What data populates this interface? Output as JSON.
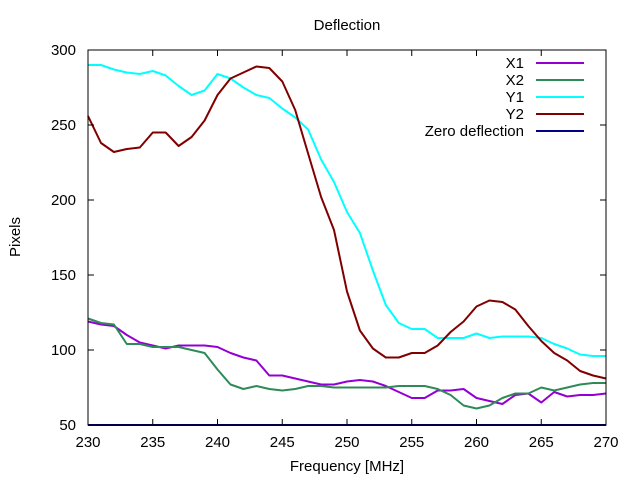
{
  "chart_data": {
    "type": "line",
    "title": "Deflection",
    "xlabel": "Frequency [MHz]",
    "ylabel": "Pixels",
    "xlim": [
      230,
      270
    ],
    "ylim": [
      50,
      300
    ],
    "x_ticks": [
      230,
      235,
      240,
      245,
      250,
      255,
      260,
      265,
      270
    ],
    "y_ticks": [
      50,
      100,
      150,
      200,
      250,
      300
    ],
    "grid": false,
    "legend_position": "top-right",
    "series": [
      {
        "name": "X1",
        "color": "#9400d3",
        "x": [
          230,
          231,
          232,
          233,
          234,
          235,
          236,
          237,
          238,
          239,
          240,
          241,
          242,
          243,
          244,
          245,
          246,
          247,
          248,
          249,
          250,
          251,
          252,
          253,
          254,
          255,
          256,
          257,
          258,
          259,
          260,
          261,
          262,
          263,
          264,
          265,
          266,
          267,
          268,
          269,
          270
        ],
        "y": [
          119,
          117,
          116,
          110,
          105,
          103,
          101,
          103,
          103,
          103,
          102,
          98,
          95,
          93,
          83,
          83,
          81,
          79,
          77,
          77,
          79,
          80,
          79,
          76,
          72,
          68,
          68,
          73,
          73,
          74,
          68,
          66,
          64,
          70,
          71,
          65,
          72,
          69,
          70,
          70,
          71
        ]
      },
      {
        "name": "X2",
        "color": "#2e8b57",
        "x": [
          230,
          231,
          232,
          233,
          234,
          235,
          236,
          237,
          238,
          239,
          240,
          241,
          242,
          243,
          244,
          245,
          246,
          247,
          248,
          249,
          250,
          251,
          252,
          253,
          254,
          255,
          256,
          257,
          258,
          259,
          260,
          261,
          262,
          263,
          264,
          265,
          266,
          267,
          268,
          269,
          270
        ],
        "y": [
          121,
          118,
          117,
          104,
          104,
          102,
          102,
          102,
          100,
          98,
          87,
          77,
          74,
          76,
          74,
          73,
          74,
          76,
          76,
          75,
          75,
          75,
          75,
          75,
          76,
          76,
          76,
          74,
          70,
          63,
          61,
          63,
          68,
          71,
          71,
          75,
          73,
          75,
          77,
          78,
          78
        ]
      },
      {
        "name": "Y1",
        "color": "#00ffff",
        "x": [
          230,
          231,
          232,
          233,
          234,
          235,
          236,
          237,
          238,
          239,
          240,
          241,
          242,
          243,
          244,
          245,
          246,
          247,
          248,
          249,
          250,
          251,
          252,
          253,
          254,
          255,
          256,
          257,
          258,
          259,
          260,
          261,
          262,
          263,
          264,
          265,
          266,
          267,
          268,
          269,
          270
        ],
        "y": [
          290,
          290,
          287,
          285,
          284,
          286,
          283,
          276,
          270,
          273,
          284,
          281,
          275,
          270,
          268,
          261,
          255,
          247,
          227,
          212,
          192,
          178,
          153,
          130,
          118,
          114,
          114,
          108,
          108,
          108,
          111,
          108,
          109,
          109,
          109,
          108,
          104,
          101,
          97,
          96,
          96
        ]
      },
      {
        "name": "Y2",
        "color": "#800000",
        "x": [
          230,
          231,
          232,
          233,
          234,
          235,
          236,
          237,
          238,
          239,
          240,
          241,
          242,
          243,
          244,
          245,
          246,
          247,
          248,
          249,
          250,
          251,
          252,
          253,
          254,
          255,
          256,
          257,
          258,
          259,
          260,
          261,
          262,
          263,
          264,
          265,
          266,
          267,
          268,
          269,
          270
        ],
        "y": [
          256,
          238,
          232,
          234,
          235,
          245,
          245,
          236,
          242,
          253,
          270,
          281,
          285,
          289,
          288,
          279,
          260,
          231,
          202,
          180,
          139,
          113,
          101,
          95,
          95,
          98,
          98,
          103,
          112,
          119,
          129,
          133,
          132,
          127,
          116,
          106,
          98,
          93,
          86,
          83,
          81
        ]
      },
      {
        "name": "Zero deflection",
        "color": "#00008b",
        "x": [
          230,
          270
        ],
        "y": [
          50,
          50
        ]
      }
    ]
  }
}
